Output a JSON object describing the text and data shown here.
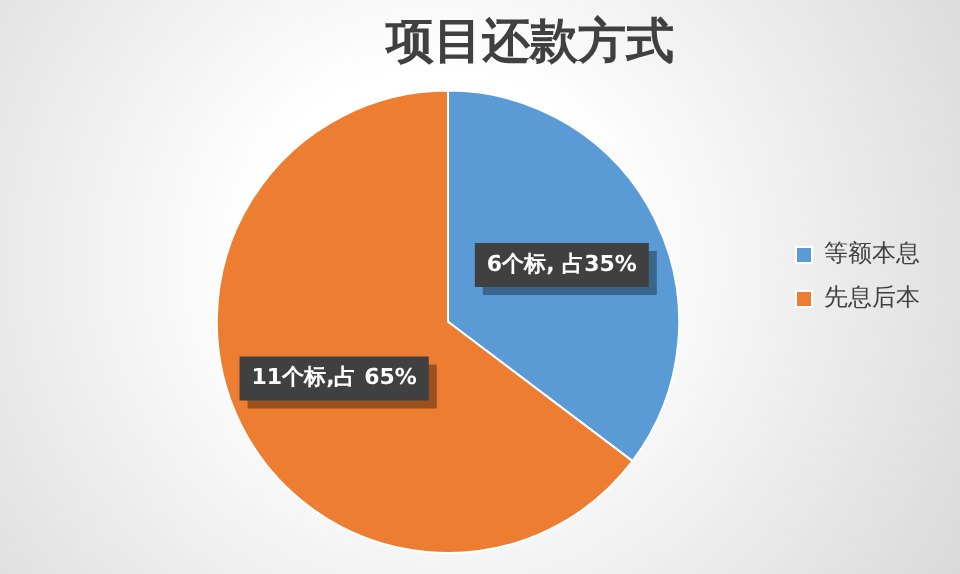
{
  "chart_data": {
    "type": "pie",
    "title": "项目还款方式",
    "categories": [
      "等额本息",
      "先息后本"
    ],
    "values": [
      6,
      11
    ],
    "colors": [
      "#5b9bd5",
      "#ed7d31"
    ],
    "value_labels": [
      "6个标, 占35%",
      "11个标,占 65%"
    ],
    "legend": "right"
  }
}
